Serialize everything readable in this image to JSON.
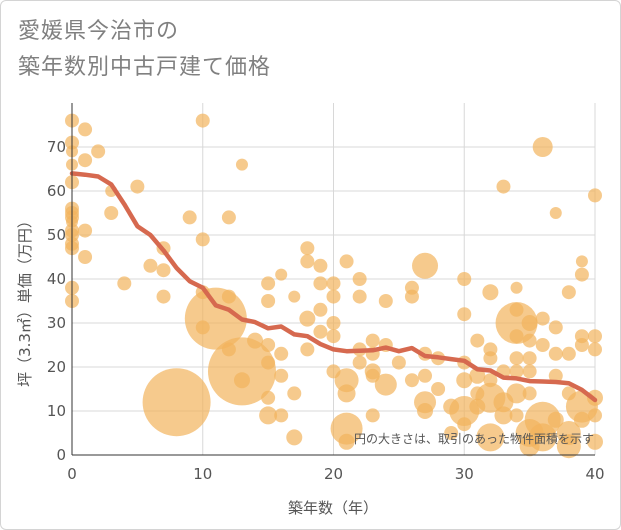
{
  "title": {
    "line1": "愛媛県今治市の",
    "line2": "築年数別中古戸建て価格"
  },
  "colors": {
    "bubble": "#f2b35c",
    "trend": "#d6694f",
    "grid": "#d8d8d8",
    "axis_text": "#555555",
    "title": "#808080"
  },
  "chart_data": {
    "type": "scatter",
    "title": "愛媛県今治市の築年数別中古戸建て価格",
    "xlabel": "築年数（年）",
    "ylabel": "坪（3.3㎡）単価（万円）",
    "xlim": [
      0,
      40
    ],
    "ylim": [
      0,
      80
    ],
    "x_ticks": [
      0,
      10,
      20,
      30,
      40
    ],
    "y_ticks": [
      0,
      10,
      20,
      30,
      40,
      50,
      60,
      70
    ],
    "grid": true,
    "annotation": "円の大きさは、取引のあった物件面積を示す",
    "trend": {
      "x": [
        0,
        1,
        2,
        3,
        4,
        5,
        6,
        7,
        8,
        9,
        10,
        11,
        12,
        13,
        14,
        15,
        16,
        17,
        18,
        19,
        20,
        21,
        22,
        23,
        24,
        25,
        26,
        27,
        28,
        29,
        30,
        31,
        32,
        33,
        34,
        35,
        36,
        37,
        38,
        39,
        40
      ],
      "y": [
        64,
        63.7,
        63.3,
        61.5,
        57,
        52,
        50,
        46.5,
        42.5,
        39.5,
        38,
        34,
        33,
        30.8,
        30.2,
        28.8,
        29.2,
        27.4,
        27,
        25.2,
        24,
        23.6,
        23.7,
        23.8,
        24.4,
        23.6,
        24.3,
        22.5,
        22.2,
        21.8,
        21.4,
        19.5,
        19.2,
        17.6,
        17.4,
        16.8,
        16.7,
        16.6,
        16.3,
        14.8,
        12.5
      ]
    },
    "points": [
      {
        "x": 0,
        "y": 76,
        "s": 7
      },
      {
        "x": 0,
        "y": 71,
        "s": 7
      },
      {
        "x": 0,
        "y": 69,
        "s": 6
      },
      {
        "x": 0,
        "y": 62,
        "s": 7
      },
      {
        "x": 0,
        "y": 56,
        "s": 7
      },
      {
        "x": 0,
        "y": 55,
        "s": 7
      },
      {
        "x": 0,
        "y": 54,
        "s": 7
      },
      {
        "x": 0,
        "y": 53,
        "s": 6
      },
      {
        "x": 0,
        "y": 51,
        "s": 7
      },
      {
        "x": 0,
        "y": 50,
        "s": 7
      },
      {
        "x": 0,
        "y": 48,
        "s": 7
      },
      {
        "x": 0,
        "y": 47,
        "s": 7
      },
      {
        "x": 0,
        "y": 38,
        "s": 7
      },
      {
        "x": 0,
        "y": 35,
        "s": 7
      },
      {
        "x": 0,
        "y": 66,
        "s": 6
      },
      {
        "x": 1,
        "y": 74,
        "s": 7
      },
      {
        "x": 1,
        "y": 67,
        "s": 7
      },
      {
        "x": 1,
        "y": 51,
        "s": 7
      },
      {
        "x": 1,
        "y": 45,
        "s": 7
      },
      {
        "x": 2,
        "y": 69,
        "s": 7
      },
      {
        "x": 3,
        "y": 60,
        "s": 6
      },
      {
        "x": 3,
        "y": 55,
        "s": 7
      },
      {
        "x": 4,
        "y": 39,
        "s": 7
      },
      {
        "x": 5,
        "y": 61,
        "s": 7
      },
      {
        "x": 6,
        "y": 43,
        "s": 7
      },
      {
        "x": 7,
        "y": 47,
        "s": 7
      },
      {
        "x": 7,
        "y": 42,
        "s": 7
      },
      {
        "x": 7,
        "y": 36,
        "s": 7
      },
      {
        "x": 8,
        "y": 12,
        "s": 34
      },
      {
        "x": 9,
        "y": 54,
        "s": 7
      },
      {
        "x": 10,
        "y": 76,
        "s": 7
      },
      {
        "x": 10,
        "y": 49,
        "s": 7
      },
      {
        "x": 10,
        "y": 37,
        "s": 7
      },
      {
        "x": 10,
        "y": 29,
        "s": 7
      },
      {
        "x": 11,
        "y": 31,
        "s": 31
      },
      {
        "x": 12,
        "y": 54,
        "s": 7
      },
      {
        "x": 12,
        "y": 36,
        "s": 7
      },
      {
        "x": 12,
        "y": 24,
        "s": 7
      },
      {
        "x": 13,
        "y": 66,
        "s": 6
      },
      {
        "x": 13,
        "y": 19,
        "s": 34
      },
      {
        "x": 13,
        "y": 17,
        "s": 8
      },
      {
        "x": 14,
        "y": 26,
        "s": 8
      },
      {
        "x": 15,
        "y": 39,
        "s": 7
      },
      {
        "x": 15,
        "y": 35,
        "s": 7
      },
      {
        "x": 15,
        "y": 25,
        "s": 7
      },
      {
        "x": 15,
        "y": 21,
        "s": 7
      },
      {
        "x": 15,
        "y": 13,
        "s": 7
      },
      {
        "x": 15,
        "y": 9,
        "s": 9
      },
      {
        "x": 16,
        "y": 41,
        "s": 6
      },
      {
        "x": 16,
        "y": 23,
        "s": 7
      },
      {
        "x": 16,
        "y": 18,
        "s": 7
      },
      {
        "x": 16,
        "y": 9,
        "s": 7
      },
      {
        "x": 17,
        "y": 36,
        "s": 6
      },
      {
        "x": 17,
        "y": 14,
        "s": 7
      },
      {
        "x": 17,
        "y": 4,
        "s": 8
      },
      {
        "x": 18,
        "y": 47,
        "s": 7
      },
      {
        "x": 18,
        "y": 44,
        "s": 7
      },
      {
        "x": 18,
        "y": 31,
        "s": 8
      },
      {
        "x": 18,
        "y": 24,
        "s": 7
      },
      {
        "x": 19,
        "y": 43,
        "s": 7
      },
      {
        "x": 19,
        "y": 39,
        "s": 7
      },
      {
        "x": 19,
        "y": 33,
        "s": 7
      },
      {
        "x": 19,
        "y": 28,
        "s": 7
      },
      {
        "x": 20,
        "y": 39,
        "s": 7
      },
      {
        "x": 20,
        "y": 36,
        "s": 7
      },
      {
        "x": 20,
        "y": 30,
        "s": 7
      },
      {
        "x": 20,
        "y": 27,
        "s": 7
      },
      {
        "x": 20,
        "y": 19,
        "s": 7
      },
      {
        "x": 21,
        "y": 44,
        "s": 7
      },
      {
        "x": 21,
        "y": 17,
        "s": 12
      },
      {
        "x": 21,
        "y": 14,
        "s": 9
      },
      {
        "x": 21,
        "y": 6,
        "s": 16
      },
      {
        "x": 21,
        "y": 3,
        "s": 8
      },
      {
        "x": 22,
        "y": 40,
        "s": 7
      },
      {
        "x": 22,
        "y": 36,
        "s": 7
      },
      {
        "x": 22,
        "y": 24,
        "s": 7
      },
      {
        "x": 22,
        "y": 21,
        "s": 7
      },
      {
        "x": 23,
        "y": 26,
        "s": 7
      },
      {
        "x": 23,
        "y": 23,
        "s": 7
      },
      {
        "x": 23,
        "y": 19,
        "s": 8
      },
      {
        "x": 23,
        "y": 18,
        "s": 7
      },
      {
        "x": 23,
        "y": 9,
        "s": 7
      },
      {
        "x": 24,
        "y": 35,
        "s": 7
      },
      {
        "x": 24,
        "y": 25,
        "s": 7
      },
      {
        "x": 24,
        "y": 16,
        "s": 11
      },
      {
        "x": 25,
        "y": 21,
        "s": 7
      },
      {
        "x": 26,
        "y": 38,
        "s": 7
      },
      {
        "x": 26,
        "y": 36,
        "s": 7
      },
      {
        "x": 26,
        "y": 17,
        "s": 7
      },
      {
        "x": 27,
        "y": 43,
        "s": 13
      },
      {
        "x": 27,
        "y": 23,
        "s": 7
      },
      {
        "x": 27,
        "y": 18,
        "s": 7
      },
      {
        "x": 27,
        "y": 12,
        "s": 11
      },
      {
        "x": 27,
        "y": 10,
        "s": 8
      },
      {
        "x": 28,
        "y": 22,
        "s": 7
      },
      {
        "x": 28,
        "y": 15,
        "s": 7
      },
      {
        "x": 29,
        "y": 11,
        "s": 8
      },
      {
        "x": 29,
        "y": 5,
        "s": 7
      },
      {
        "x": 30,
        "y": 40,
        "s": 7
      },
      {
        "x": 30,
        "y": 32,
        "s": 7
      },
      {
        "x": 30,
        "y": 21,
        "s": 7
      },
      {
        "x": 30,
        "y": 17,
        "s": 8
      },
      {
        "x": 30,
        "y": 10,
        "s": 15
      },
      {
        "x": 30,
        "y": 7,
        "s": 7
      },
      {
        "x": 31,
        "y": 26,
        "s": 7
      },
      {
        "x": 31,
        "y": 18,
        "s": 8
      },
      {
        "x": 31,
        "y": 14,
        "s": 7
      },
      {
        "x": 31,
        "y": 11,
        "s": 8
      },
      {
        "x": 32,
        "y": 37,
        "s": 8
      },
      {
        "x": 32,
        "y": 24,
        "s": 7
      },
      {
        "x": 32,
        "y": 22,
        "s": 7
      },
      {
        "x": 32,
        "y": 17,
        "s": 7
      },
      {
        "x": 32,
        "y": 13,
        "s": 15
      },
      {
        "x": 32,
        "y": 4,
        "s": 14
      },
      {
        "x": 33,
        "y": 61,
        "s": 7
      },
      {
        "x": 33,
        "y": 19,
        "s": 7
      },
      {
        "x": 33,
        "y": 12,
        "s": 10
      },
      {
        "x": 33,
        "y": 9,
        "s": 9
      },
      {
        "x": 34,
        "y": 38,
        "s": 6
      },
      {
        "x": 34,
        "y": 33,
        "s": 7
      },
      {
        "x": 34,
        "y": 30,
        "s": 21
      },
      {
        "x": 34,
        "y": 27,
        "s": 7
      },
      {
        "x": 34,
        "y": 22,
        "s": 7
      },
      {
        "x": 34,
        "y": 19,
        "s": 7
      },
      {
        "x": 34,
        "y": 14,
        "s": 10
      },
      {
        "x": 34,
        "y": 9,
        "s": 7
      },
      {
        "x": 35,
        "y": 30,
        "s": 8
      },
      {
        "x": 35,
        "y": 26,
        "s": 7
      },
      {
        "x": 35,
        "y": 22,
        "s": 7
      },
      {
        "x": 35,
        "y": 19,
        "s": 7
      },
      {
        "x": 35,
        "y": 14,
        "s": 7
      },
      {
        "x": 35,
        "y": 5,
        "s": 14
      },
      {
        "x": 35,
        "y": 2,
        "s": 10
      },
      {
        "x": 36,
        "y": 70,
        "s": 10
      },
      {
        "x": 36,
        "y": 31,
        "s": 7
      },
      {
        "x": 36,
        "y": 25,
        "s": 7
      },
      {
        "x": 36,
        "y": 8,
        "s": 18
      },
      {
        "x": 36,
        "y": 4,
        "s": 14
      },
      {
        "x": 37,
        "y": 55,
        "s": 6
      },
      {
        "x": 37,
        "y": 29,
        "s": 7
      },
      {
        "x": 37,
        "y": 23,
        "s": 7
      },
      {
        "x": 37,
        "y": 18,
        "s": 7
      },
      {
        "x": 37,
        "y": 8,
        "s": 8
      },
      {
        "x": 38,
        "y": 37,
        "s": 7
      },
      {
        "x": 38,
        "y": 23,
        "s": 7
      },
      {
        "x": 38,
        "y": 14,
        "s": 7
      },
      {
        "x": 38,
        "y": 5,
        "s": 12
      },
      {
        "x": 38,
        "y": 2,
        "s": 12
      },
      {
        "x": 39,
        "y": 44,
        "s": 6
      },
      {
        "x": 39,
        "y": 41,
        "s": 7
      },
      {
        "x": 39,
        "y": 27,
        "s": 7
      },
      {
        "x": 39,
        "y": 25,
        "s": 7
      },
      {
        "x": 39,
        "y": 11,
        "s": 16
      },
      {
        "x": 39,
        "y": 8,
        "s": 8
      },
      {
        "x": 40,
        "y": 59,
        "s": 7
      },
      {
        "x": 40,
        "y": 27,
        "s": 7
      },
      {
        "x": 40,
        "y": 24,
        "s": 7
      },
      {
        "x": 40,
        "y": 13,
        "s": 8
      },
      {
        "x": 40,
        "y": 9,
        "s": 7
      },
      {
        "x": 40,
        "y": 3,
        "s": 8
      }
    ]
  }
}
